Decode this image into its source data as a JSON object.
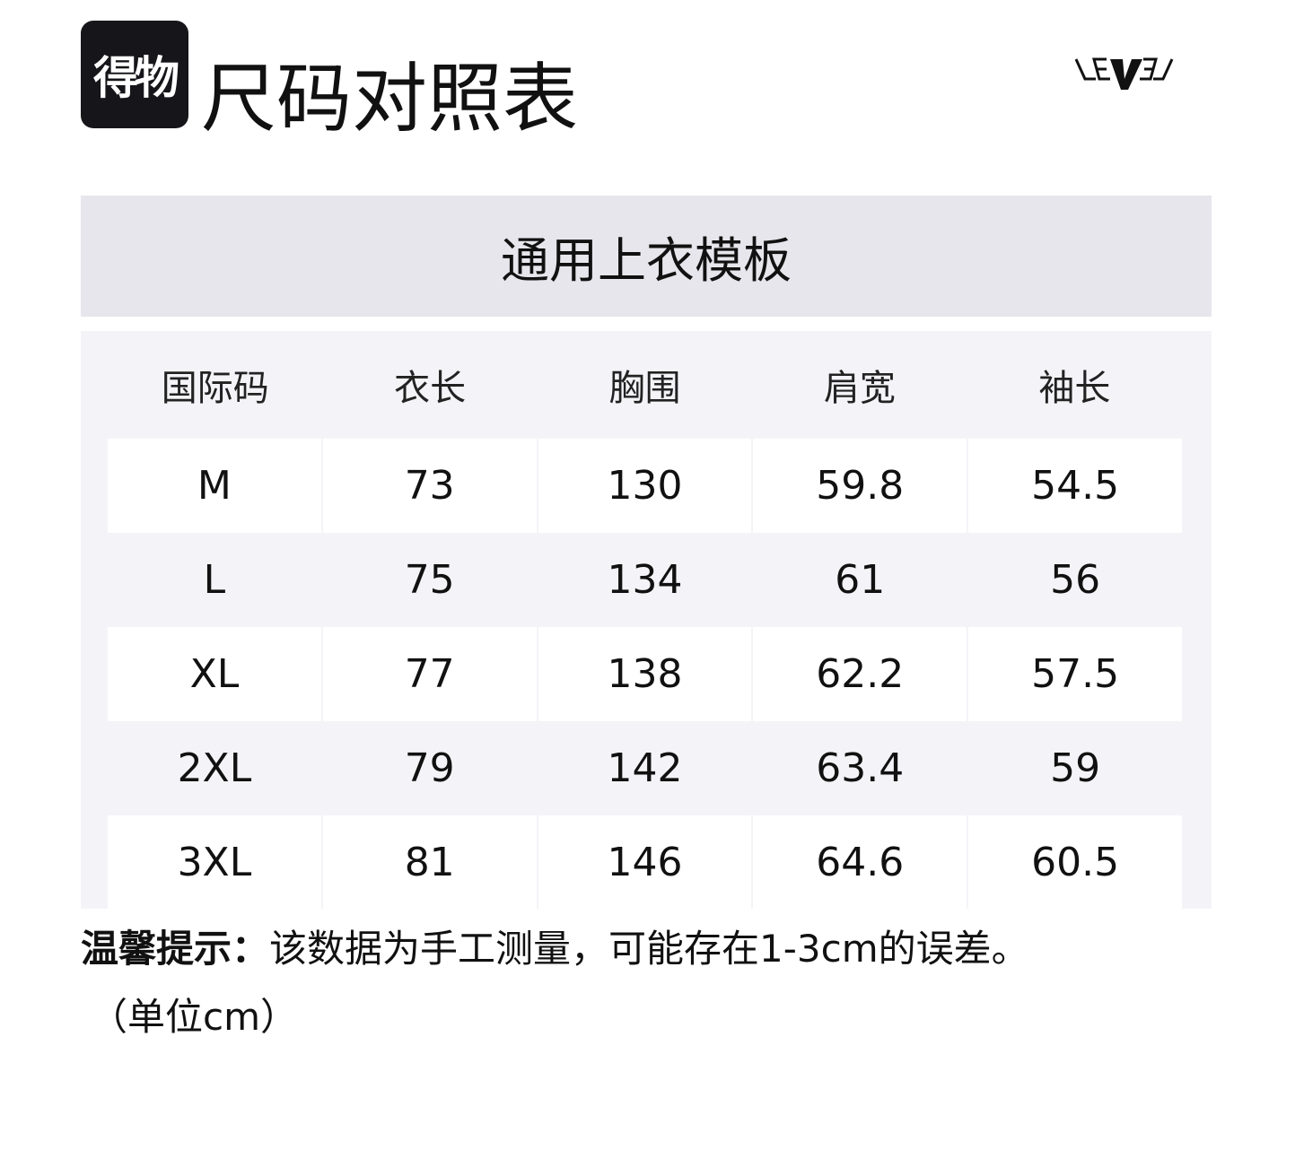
{
  "logo": {
    "text": "得物"
  },
  "title": "尺码对照表",
  "brand_logo": {
    "text": "LEVEL"
  },
  "template_name": "通用上衣模板",
  "table": {
    "headers": [
      "国际码",
      "衣长",
      "胸围",
      "肩宽",
      "袖长"
    ],
    "rows": [
      [
        "M",
        "73",
        "130",
        "59.8",
        "54.5"
      ],
      [
        "L",
        "75",
        "134",
        "61",
        "56"
      ],
      [
        "XL",
        "77",
        "138",
        "62.2",
        "57.5"
      ],
      [
        "2XL",
        "79",
        "142",
        "63.4",
        "59"
      ],
      [
        "3XL",
        "81",
        "146",
        "64.6",
        "60.5"
      ]
    ]
  },
  "note": {
    "label": "温馨提示：",
    "text": "该数据为手工测量，可能存在1-3cm的误差。",
    "unit": "（单位cm）"
  },
  "colors": {
    "header_band": "#e6e6ec",
    "table_bg": "#f4f4f8",
    "logo_bg": "#16161a"
  }
}
